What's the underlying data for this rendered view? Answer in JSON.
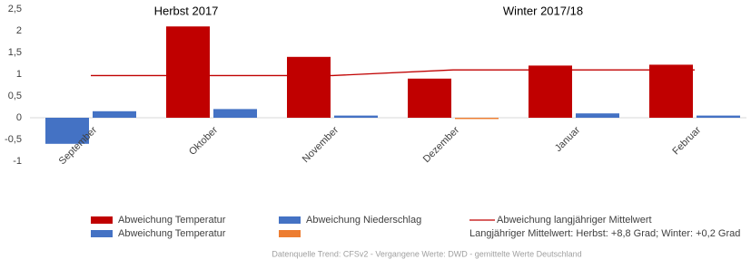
{
  "chart_data": {
    "type": "bar",
    "annotations": [
      "Herbst 2017",
      "Winter 2017/18"
    ],
    "note": "Langjähriger Mittelwert: Herbst: +8,8 Grad; Winter: +0,2 Grad",
    "source": "Datenquelle Trend: CFSv2 - Vergangene Werte: DWD - gemittelte Werte Deutschland",
    "categories": [
      "September",
      "Oktober",
      "November",
      "Dezember",
      "Januar",
      "Februar"
    ],
    "series": [
      {
        "name": "Abweichung Temperatur",
        "color": "#c00000",
        "values": [
          null,
          2.1,
          1.4,
          0.9,
          1.2,
          1.22
        ]
      },
      {
        "name": "Abweichung Niederschlag",
        "color": "#4472c4",
        "values": [
          0.15,
          0.2,
          0.05,
          null,
          0.1,
          0.05
        ]
      },
      {
        "name": "Abweichung langjähriger Mittelwert",
        "color": "#c00000",
        "type": "line",
        "values": [
          0.97,
          0.97,
          0.97,
          1.1,
          1.1,
          1.1
        ]
      },
      {
        "name": "Abweichung Temperatur",
        "color": "#4472c4",
        "values": [
          -0.6,
          null,
          null,
          null,
          null,
          null
        ]
      },
      {
        "color": "#ed7d31",
        "values": [
          null,
          null,
          null,
          -0.03,
          null,
          null
        ]
      }
    ],
    "ylim": [
      -1,
      2.5
    ],
    "yticks": [
      -1,
      {
        "value": -0.5,
        "label": "-0,5"
      },
      0,
      {
        "value": 0.5,
        "label": "0,5"
      },
      1,
      {
        "value": 1.5,
        "label": "1,5"
      },
      2,
      {
        "value": 2.5,
        "label": "2,5"
      }
    ]
  }
}
